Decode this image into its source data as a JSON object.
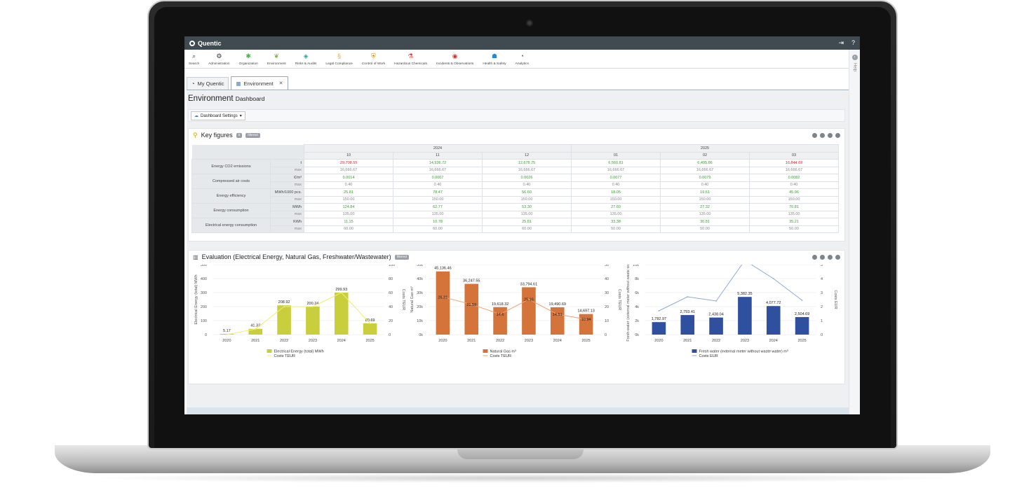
{
  "app": {
    "brand": "Quentic",
    "help_label": "Help"
  },
  "modules": [
    {
      "label": "Search",
      "icon": "search-icon",
      "color": "#333333"
    },
    {
      "label": "Administration",
      "icon": "gear-icon",
      "color": "#333333"
    },
    {
      "label": "Organization",
      "icon": "organization-icon",
      "color": "#4caf50"
    },
    {
      "label": "Environment",
      "icon": "leaf-icon",
      "color": "#7cb342"
    },
    {
      "label": "Risks & Audits",
      "icon": "risks-icon",
      "color": "#26a69a"
    },
    {
      "label": "Legal Compliance",
      "icon": "paragraph-icon",
      "color": "#f5a623"
    },
    {
      "label": "Control of Work",
      "icon": "shield-icon",
      "color": "#e08a00"
    },
    {
      "label": "Hazardous Chemicals",
      "icon": "flask-icon",
      "color": "#e53935"
    },
    {
      "label": "Incidents & Observations",
      "icon": "incident-icon",
      "color": "#d32f2f"
    },
    {
      "label": "Health & Safety",
      "icon": "health-icon",
      "color": "#1e88e5"
    },
    {
      "label": "Analytics",
      "icon": "analytics-icon",
      "color": "#555555"
    }
  ],
  "tabs": [
    {
      "label": "My Quentic"
    },
    {
      "label": "Environment"
    }
  ],
  "page": {
    "title": "Environment",
    "subtitle": "Dashboard",
    "settings_button": "Dashboard Settings"
  },
  "key_figures": {
    "title": "Key figures",
    "count_badge": "5",
    "filter_badge": "filtered",
    "years": [
      {
        "label": "2024",
        "span": 3
      },
      {
        "label": "2025",
        "span": 3
      }
    ],
    "months": [
      "10",
      "11",
      "12",
      "01",
      "02",
      "03"
    ],
    "rows": [
      {
        "metric": "Energy CO2 emissions",
        "unit": "t",
        "values": [
          "29,708.55",
          "14,936.72",
          "12,678.75",
          "6,560.81",
          "6,495.86",
          "16,844.69"
        ],
        "status": [
          "red",
          "green",
          "green",
          "green",
          "green",
          "red"
        ],
        "max_label": "max",
        "max": [
          "16,666.67",
          "16,666.67",
          "16,666.67",
          "16,666.67",
          "16,666.67",
          "16,666.67"
        ]
      },
      {
        "metric": "Compressed air costs",
        "unit": "€/m³",
        "values": [
          "0.0014",
          "0.0007",
          "0.0026",
          "0.0077",
          "0.0079",
          "0.0082"
        ],
        "status": [
          "green",
          "green",
          "green",
          "green",
          "green",
          "green"
        ],
        "max_label": "max",
        "max": [
          "0.40",
          "0.40",
          "0.40",
          "0.40",
          "0.40",
          "0.40"
        ]
      },
      {
        "metric": "Energy efficiency",
        "unit": "MWh/1000 pcs.",
        "values": [
          "25.81",
          "78.47",
          "56.60",
          "18.05",
          "19.61",
          "45.96"
        ],
        "status": [
          "green",
          "green",
          "green",
          "green",
          "green",
          "green"
        ],
        "max_label": "max",
        "max": [
          "150.00",
          "150.00",
          "150.00",
          "150.00",
          "150.00",
          "150.00"
        ]
      },
      {
        "metric": "Energy consumption",
        "unit": "MWh",
        "values": [
          "124.84",
          "62.77",
          "53.30",
          "27.60",
          "27.32",
          "70.81"
        ],
        "status": [
          "green",
          "green",
          "green",
          "green",
          "green",
          "green"
        ],
        "max_label": "max",
        "max": [
          "135.00",
          "135.00",
          "135.00",
          "135.00",
          "135.00",
          "135.00"
        ]
      },
      {
        "metric": "Electrical energy consumption",
        "unit": "KWh",
        "values": [
          "11.15",
          "10.78",
          "25.81",
          "33.38",
          "30.81",
          "35.21"
        ],
        "status": [
          "green",
          "green",
          "green",
          "green",
          "green",
          "green"
        ],
        "max_label": "max",
        "max": [
          "60.00",
          "60.00",
          "60.00",
          "50.00",
          "50.00",
          "50.00"
        ]
      }
    ]
  },
  "evaluation": {
    "title": "Evaluation (Electrical Energy, Natural Gas, Freshwater/Wastewater)",
    "filter_badge": "filtered"
  },
  "chart_data": [
    {
      "type": "bar",
      "categories": [
        "2020",
        "2021",
        "2022",
        "2023",
        "2024",
        "2025"
      ],
      "series": [
        {
          "name": "Electrical Energy (total) MWh",
          "values": [
            5.17,
            41.33,
            208.92,
            200.24,
            299.93,
            80.69
          ],
          "labels": [
            "5.17",
            "41.33",
            "208.92",
            "200.24",
            "299.93",
            "80.69"
          ],
          "color": "#c9cf3c"
        },
        {
          "name": "Costs TEUR",
          "type": "line",
          "values": [
            0,
            8,
            40,
            40,
            60,
            16
          ],
          "labels": [],
          "color": "#f2ee6b"
        }
      ],
      "ylabel": "Electrical Energy (total) MWh",
      "y2label": "Costs TEUR",
      "ylim": [
        0,
        500
      ],
      "y2lim": [
        0,
        100
      ],
      "yticks": [
        "0",
        "100",
        "200",
        "300",
        "400",
        "500"
      ],
      "y2ticks": [
        "0",
        "20",
        "40",
        "60",
        "80",
        "100"
      ],
      "legend": "bottom"
    },
    {
      "type": "bar",
      "categories": [
        "2020",
        "2021",
        "2022",
        "2023",
        "2024",
        "2025"
      ],
      "series": [
        {
          "name": "Natural Gas m³",
          "values": [
            45136.46,
            36247.55,
            19618.32,
            33794.61,
            19490.69,
            14697.13
          ],
          "labels": [
            "45,136.46",
            "36,247.55",
            "19,618.32",
            "33,794.61",
            "19,490.69",
            "14,697.13"
          ],
          "color": "#d4733a"
        },
        {
          "name": "Costs TEUR",
          "type": "line",
          "values": [
            26.81,
            21.59,
            14.6,
            25.16,
            14.51,
            10.94
          ],
          "labels": [
            "26.81",
            "21.59",
            "14.6",
            "25.16",
            "14.51",
            "10.94"
          ],
          "color": "#f0a070"
        }
      ],
      "ylabel": "Natural Gas m³",
      "y2label": "Costs TEUR",
      "ylim": [
        0,
        50000
      ],
      "y2lim": [
        0,
        50
      ],
      "yticks": [
        "0k",
        "10k",
        "20k",
        "30k",
        "40k",
        "50k"
      ],
      "y2ticks": [
        "0",
        "10",
        "20",
        "30",
        "40",
        "50"
      ],
      "legend": "bottom"
    },
    {
      "type": "bar",
      "categories": [
        "2020",
        "2021",
        "2022",
        "2023",
        "2024",
        "2025"
      ],
      "series": [
        {
          "name": "Fresh water (external meter without waste water) m³",
          "values": [
            1782.97,
            2793.41,
            2438.04,
            5382.35,
            4077.72,
            2504.69
          ],
          "labels": [
            "1,782.97",
            "2,793.41",
            "2,438.04",
            "5,382.35",
            "4,077.72",
            "2,504.69"
          ],
          "color": "#2f4f9f"
        },
        {
          "name": "Costs EUR",
          "type": "line",
          "values": [
            1.7,
            2.7,
            2.4,
            5.3,
            4.0,
            2.45
          ],
          "labels": [],
          "color": "#8fa8d8"
        }
      ],
      "ylabel": "Fresh-water (external meter without waste water)",
      "y2label": "Costs EUR",
      "ylim": [
        0,
        10000
      ],
      "y2lim": [
        0,
        5
      ],
      "yticks": [
        "0k",
        "2k",
        "4k",
        "6k",
        "8k",
        "10k"
      ],
      "y2ticks": [
        "0",
        "1",
        "2",
        "3",
        "4",
        "5"
      ],
      "legend": "bottom"
    }
  ]
}
